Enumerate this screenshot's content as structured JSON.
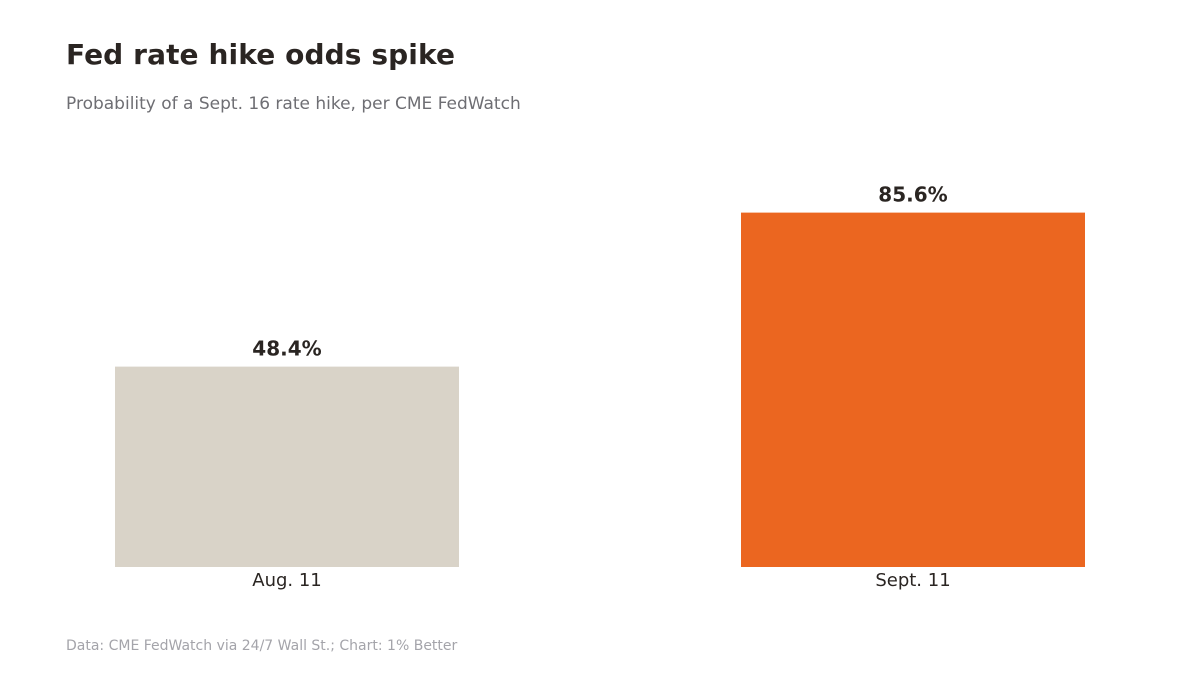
{
  "chart_data": {
    "type": "bar",
    "title": "Fed rate hike odds spike",
    "subtitle": "Probability of a Sept. 16 rate hike, per CME FedWatch",
    "categories": [
      "Aug. 11",
      "Sept. 11"
    ],
    "values": [
      48.4,
      85.6
    ],
    "value_labels": [
      "48.4%",
      "85.6%"
    ],
    "colors": [
      "#d9d3c8",
      "#eb6620"
    ],
    "ylim": [
      0,
      100
    ],
    "grid": false,
    "legend": "none",
    "source": "Data: CME FedWatch via 24/7 Wall St.; Chart: 1% Better"
  }
}
